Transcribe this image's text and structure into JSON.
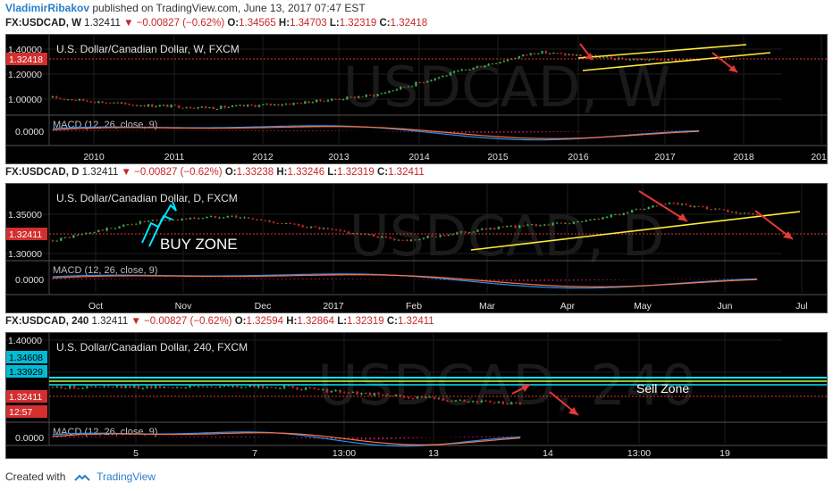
{
  "header": {
    "author": "VladimirRibakov",
    "published": "published on TradingView.com, June 13, 2017 07:47 EST"
  },
  "footer": {
    "created_with": "Created with",
    "brand": "TradingView"
  },
  "colors": {
    "up": "#3da84a",
    "down": "#c62828",
    "trend": "#ffeb3b",
    "arrow": "#e53935",
    "cyan": "#00e5ff",
    "macd": "#2196f3",
    "signal": "#ff7043",
    "hist": "#d81b60"
  },
  "panels": [
    {
      "quote": {
        "sym": "FX:USDCAD, W",
        "last": "1.32411",
        "change": "−0.00827 (−0.62%)",
        "o": "1.34565",
        "h": "1.34703",
        "l": "1.32319",
        "c": "1.32418"
      },
      "title": "U.S. Dollar/Canadian Dollar, W, FXCM",
      "watermark": "USDCAD, W",
      "macd_label": "MACD (12, 26, close, 9)",
      "price_ticks": [
        "1.40000",
        "1.20000",
        "1.00000"
      ],
      "price_badges": [
        "1.32418"
      ],
      "macd_ticks": [
        "0.0000"
      ],
      "time_ticks": [
        "2010",
        "2011",
        "2012",
        "2013",
        "2014",
        "2015",
        "2016",
        "2017",
        "2018",
        "2019"
      ],
      "annotations": []
    },
    {
      "quote": {
        "sym": "FX:USDCAD, D",
        "last": "1.32411",
        "change": "−0.00827 (−0.62%)",
        "o": "1.33238",
        "h": "1.33246",
        "l": "1.32319",
        "c": "1.32411"
      },
      "title": "U.S. Dollar/Canadian Dollar, D, FXCM",
      "watermark": "USDCAD, D",
      "macd_label": "MACD (12, 26, close, 9)",
      "price_ticks": [
        "1.35000",
        "1.30000"
      ],
      "price_badges": [
        "1.32411"
      ],
      "macd_ticks": [
        "0.0000"
      ],
      "time_ticks": [
        "Oct",
        "Nov",
        "Dec",
        "2017",
        "Feb",
        "Mar",
        "Apr",
        "May",
        "Jun",
        "Jul"
      ],
      "annotations": [
        "BUY ZONE"
      ]
    },
    {
      "quote": {
        "sym": "FX:USDCAD, 240",
        "last": "1.32411",
        "change": "−0.00827 (−0.62%)",
        "o": "1.32594",
        "h": "1.32864",
        "l": "1.32319",
        "c": "1.32411"
      },
      "title": "U.S. Dollar/Canadian Dollar, 240, FXCM",
      "watermark": "USDCAD, 240",
      "macd_label": "MACD (12, 26, close, 9)",
      "price_ticks": [
        "1.40000",
        "1.35000"
      ],
      "price_badges": [
        "1.34608",
        "1.33929",
        "1.32411",
        "12:57"
      ],
      "macd_ticks": [
        "0.0000"
      ],
      "time_ticks": [
        "5",
        "7",
        "13:00",
        "13",
        "14",
        "13:00",
        "19"
      ],
      "annotations": [
        "Sell Zone"
      ]
    }
  ],
  "chart_data": [
    {
      "type": "candlestick",
      "title": "U.S. Dollar/Canadian Dollar, W, FXCM",
      "x": [
        "2010",
        "2011",
        "2012",
        "2013",
        "2014",
        "2015",
        "2016",
        "2017",
        "2018"
      ],
      "series": [
        {
          "values": [
            1.06,
            1.01,
            0.99,
            1.02,
            1.08,
            1.24,
            1.38,
            1.33,
            1.32
          ]
        }
      ],
      "ylim": [
        0.95,
        1.45
      ]
    },
    {
      "type": "candlestick",
      "title": "U.S. Dollar/Canadian Dollar, D, FXCM",
      "x": [
        "Oct",
        "Nov",
        "Dec",
        "2017",
        "Feb",
        "Mar",
        "Apr",
        "May",
        "Jun"
      ],
      "series": [
        {
          "values": [
            1.31,
            1.34,
            1.35,
            1.33,
            1.31,
            1.33,
            1.34,
            1.37,
            1.35
          ]
        }
      ],
      "ylim": [
        1.28,
        1.39
      ]
    },
    {
      "type": "candlestick",
      "title": "U.S. Dollar/Canadian Dollar, 240, FXCM",
      "x": [
        "5",
        "7",
        "13:00",
        "13",
        "14",
        "13:00",
        "19"
      ],
      "series": [
        {
          "values": [
            1.347,
            1.347,
            1.348,
            1.347,
            1.338,
            1.331,
            1.324
          ]
        }
      ],
      "ylim": [
        1.3,
        1.41
      ]
    }
  ]
}
